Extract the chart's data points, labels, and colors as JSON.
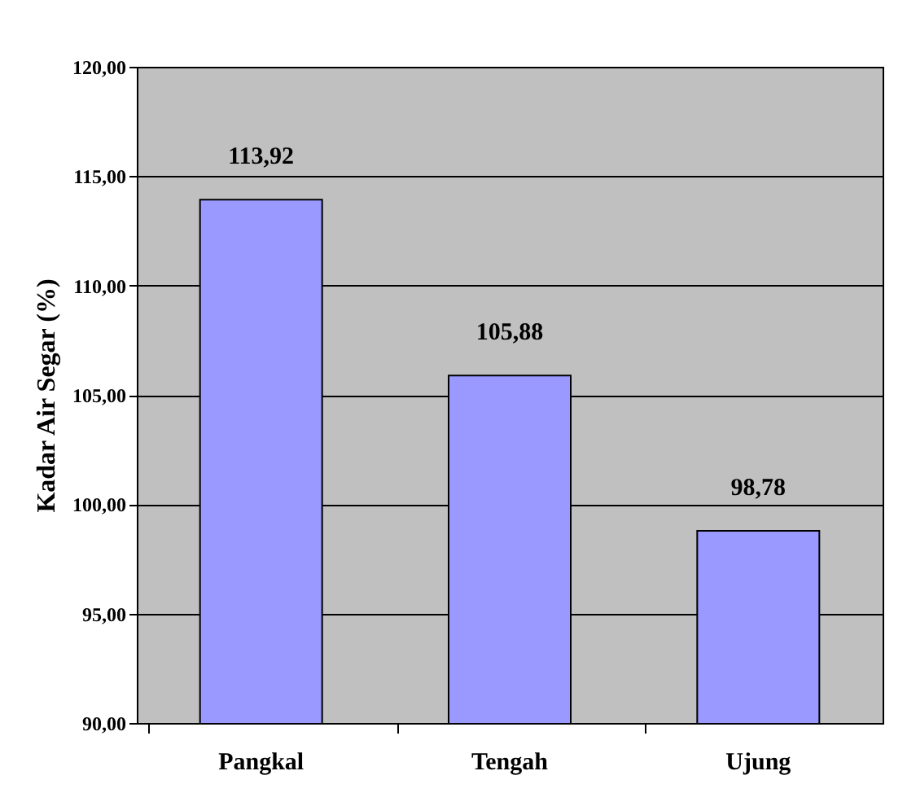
{
  "chart_data": {
    "type": "bar",
    "ylabel": "Kadar Air Segar (%)",
    "categories": [
      "Pangkal",
      "Tengah",
      "Ujung"
    ],
    "values": [
      113.92,
      105.88,
      98.78
    ],
    "value_labels": [
      "113,92",
      "105,88",
      "98,78"
    ],
    "color": "#9999ff",
    "ylim": [
      90,
      120
    ],
    "yticks": [
      {
        "value": 90,
        "label": "90,00"
      },
      {
        "value": 95,
        "label": "95,00"
      },
      {
        "value": 100,
        "label": "100,00"
      },
      {
        "value": 105,
        "label": "105,00"
      },
      {
        "value": 110,
        "label": "110,00"
      },
      {
        "value": 115,
        "label": "115,00"
      },
      {
        "value": 120,
        "label": "120,00"
      }
    ],
    "grid": "y"
  }
}
